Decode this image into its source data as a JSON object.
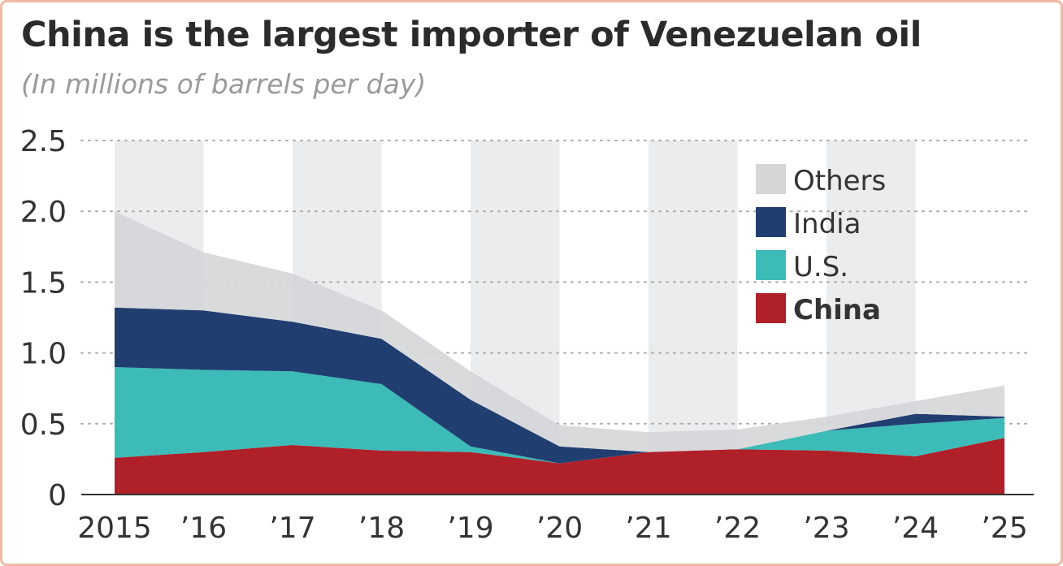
{
  "title": "China is the largest importer of Venezuelan oil",
  "subtitle": "(In millions of barrels per day)",
  "chart_data": {
    "type": "area",
    "stacked": true,
    "categories": [
      "2015",
      "’16",
      "’17",
      "’18",
      "’19",
      "’20",
      "’21",
      "’22",
      "’23",
      "’24",
      "’25"
    ],
    "series": [
      {
        "name": "China",
        "color": "#b02029",
        "values": [
          0.26,
          0.3,
          0.35,
          0.31,
          0.3,
          0.22,
          0.3,
          0.32,
          0.31,
          0.27,
          0.4
        ]
      },
      {
        "name": "U.S.",
        "color": "#3cbbb8",
        "values": [
          0.64,
          0.58,
          0.52,
          0.47,
          0.04,
          0.0,
          0.0,
          0.0,
          0.14,
          0.23,
          0.14
        ]
      },
      {
        "name": "India",
        "color": "#213e70",
        "values": [
          0.42,
          0.42,
          0.35,
          0.32,
          0.33,
          0.12,
          0.0,
          0.0,
          0.0,
          0.07,
          0.01
        ]
      },
      {
        "name": "Others",
        "color": "#d5d6d8",
        "values": [
          0.68,
          0.41,
          0.34,
          0.2,
          0.2,
          0.15,
          0.14,
          0.14,
          0.1,
          0.09,
          0.22
        ]
      }
    ],
    "ylim": [
      0,
      2.5
    ],
    "yticks": [
      "0",
      "0.5",
      "1.0",
      "1.5",
      "2.0",
      "2.5"
    ],
    "grid": true,
    "legend_position": "top-right",
    "legend_order": [
      "Others",
      "India",
      "U.S.",
      "China"
    ],
    "legend_bold": "China"
  }
}
